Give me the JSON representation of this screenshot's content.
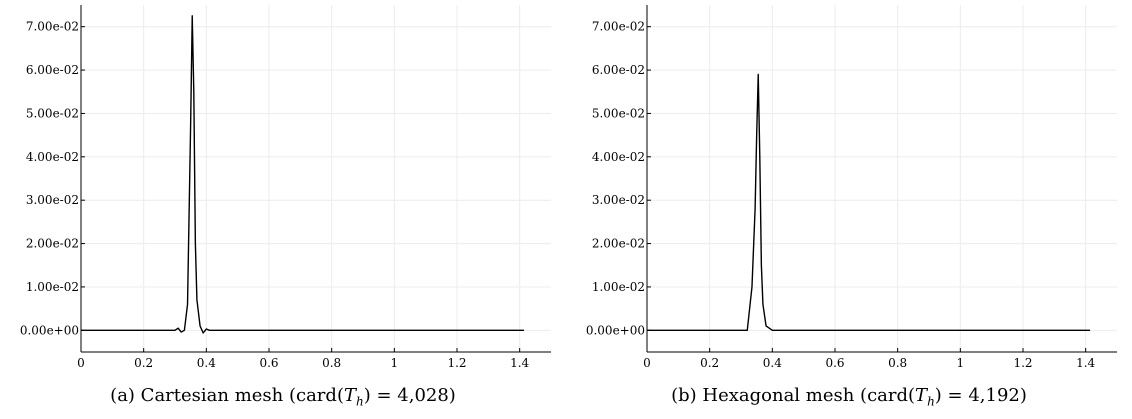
{
  "charts": [
    {
      "caption": {
        "prefix": "(a) Cartesian mesh (card(",
        "symbol": "T",
        "subscript": "h",
        "suffix": ") = 4,028)"
      },
      "chart_data": {
        "type": "line",
        "title": "",
        "xlabel": "",
        "ylabel": "",
        "xlim": [
          0,
          1.5
        ],
        "ylim": [
          -0.005,
          0.075
        ],
        "x_ticks": [
          0,
          0.2,
          0.4,
          0.6,
          0.8,
          1,
          1.2,
          1.4
        ],
        "x_tick_labels": [
          "0",
          "0.2",
          "0.4",
          "0.6",
          "0.8",
          "1",
          "1.2",
          "1.4"
        ],
        "y_ticks": [
          0,
          0.01,
          0.02,
          0.03,
          0.04,
          0.05,
          0.06,
          0.07
        ],
        "y_tick_labels": [
          "0.00e+00",
          "1.00e-02",
          "2.00e-02",
          "3.00e-02",
          "4.00e-02",
          "5.00e-02",
          "6.00e-02",
          "7.00e-02"
        ],
        "grid": true,
        "series": [
          {
            "color": "#000000",
            "x": [
              0,
              0.3,
              0.31,
              0.32,
              0.33,
              0.34,
              0.35,
              0.355,
              0.36,
              0.365,
              0.37,
              0.38,
              0.39,
              0.4,
              0.41,
              1.414
            ],
            "y": [
              0,
              0,
              0.0005,
              -0.0004,
              0,
              0.006,
              0.048,
              0.0725,
              0.055,
              0.02,
              0.007,
              0.001,
              -0.0006,
              0.0003,
              0,
              0
            ]
          }
        ]
      }
    },
    {
      "caption": {
        "prefix": "(b) Hexagonal mesh (card(",
        "symbol": "T",
        "subscript": "h",
        "suffix": ") = 4,192)"
      },
      "chart_data": {
        "type": "line",
        "title": "",
        "xlabel": "",
        "ylabel": "",
        "xlim": [
          0,
          1.5
        ],
        "ylim": [
          -0.005,
          0.075
        ],
        "x_ticks": [
          0,
          0.2,
          0.4,
          0.6,
          0.8,
          1,
          1.2,
          1.4
        ],
        "x_tick_labels": [
          "0",
          "0.2",
          "0.4",
          "0.6",
          "0.8",
          "1",
          "1.2",
          "1.4"
        ],
        "y_ticks": [
          0,
          0.01,
          0.02,
          0.03,
          0.04,
          0.05,
          0.06,
          0.07
        ],
        "y_tick_labels": [
          "0.00e+00",
          "1.00e-02",
          "2.00e-02",
          "3.00e-02",
          "4.00e-02",
          "5.00e-02",
          "6.00e-02",
          "7.00e-02"
        ],
        "grid": true,
        "series": [
          {
            "color": "#000000",
            "x": [
              0,
              0.32,
              0.335,
              0.345,
              0.35,
              0.355,
              0.36,
              0.365,
              0.37,
              0.38,
              0.4,
              1.414
            ],
            "y": [
              0,
              0,
              0.01,
              0.028,
              0.045,
              0.059,
              0.04,
              0.015,
              0.006,
              0.001,
              0,
              0
            ]
          }
        ]
      }
    }
  ]
}
